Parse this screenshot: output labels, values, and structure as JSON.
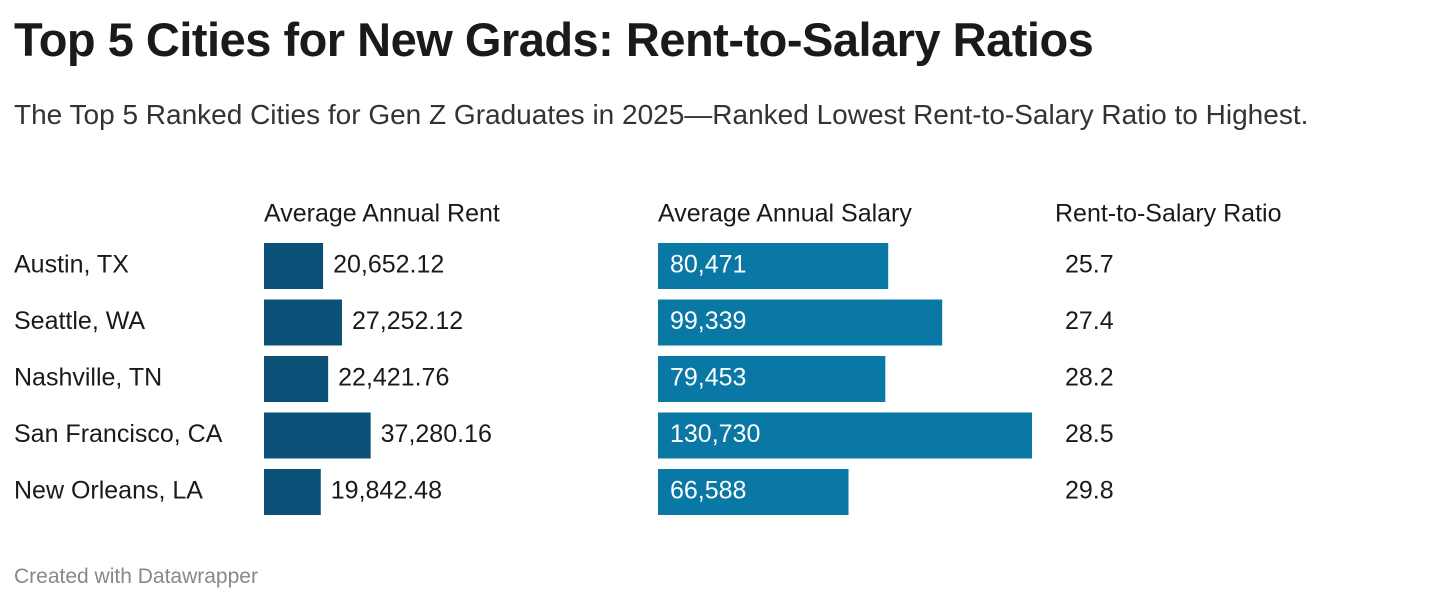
{
  "chart_data": {
    "type": "bar",
    "title": "Top 5 Cities for New Grads: Rent-to-Salary Ratios",
    "subtitle": "The Top 5 Ranked Cities for Gen Z Graduates in 2025—Ranked Lowest Rent-to-Salary Ratio to Highest.",
    "categories": [
      "Austin, TX",
      "Seattle, WA",
      "Nashville, TN",
      "San Francisco, CA",
      "New Orleans, LA"
    ],
    "series": [
      {
        "name": "Average Annual Rent",
        "color": "#0b5077",
        "values": [
          20652.12,
          27252.12,
          22421.76,
          37280.16,
          19842.48
        ],
        "value_labels": [
          "20,652.12",
          "27,252.12",
          "22,421.76",
          "37,280.16",
          "19,842.48"
        ]
      },
      {
        "name": "Average Annual Salary",
        "color": "#0a78a4",
        "values": [
          80471,
          99339,
          79453,
          130730,
          66588
        ],
        "value_labels": [
          "80,471",
          "99,339",
          "79,453",
          "130,730",
          "66,588"
        ]
      },
      {
        "name": "Rent-to-Salary Ratio",
        "values": [
          25.7,
          27.4,
          28.2,
          28.5,
          29.8
        ]
      }
    ],
    "credit": "Created with Datawrapper"
  }
}
